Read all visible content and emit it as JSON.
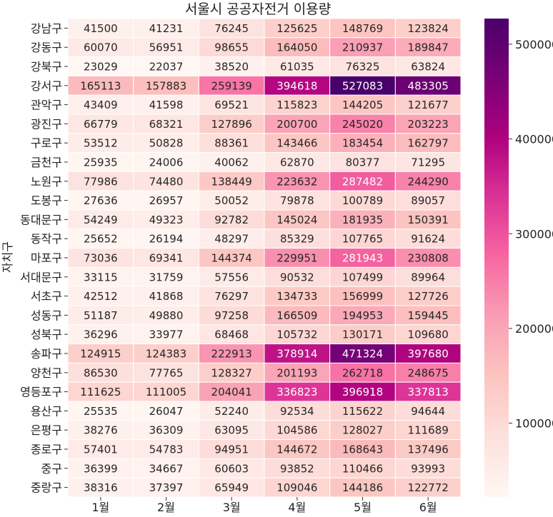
{
  "chart_data": {
    "type": "heatmap",
    "title": "서울시 공공자전거 이용량",
    "ylabel": "자치구",
    "xlabel": "",
    "x_categories": [
      "1월",
      "2월",
      "3월",
      "4월",
      "5월",
      "6월"
    ],
    "y_categories": [
      "강남구",
      "강동구",
      "강북구",
      "강서구",
      "관악구",
      "광진구",
      "구로구",
      "금천구",
      "노원구",
      "도봉구",
      "동대문구",
      "동작구",
      "마포구",
      "서대문구",
      "서초구",
      "성동구",
      "성북구",
      "송파구",
      "양천구",
      "영등포구",
      "용산구",
      "은평구",
      "종로구",
      "중구",
      "중랑구"
    ],
    "values": [
      [
        41500,
        41231,
        76245,
        125625,
        148769,
        123824
      ],
      [
        60070,
        56951,
        98655,
        164050,
        210937,
        189847
      ],
      [
        23029,
        22037,
        38520,
        61035,
        76325,
        63824
      ],
      [
        165113,
        157883,
        259139,
        394618,
        527083,
        483305
      ],
      [
        43409,
        41598,
        69521,
        115823,
        144205,
        121677
      ],
      [
        66779,
        68321,
        127896,
        200700,
        245020,
        203223
      ],
      [
        53512,
        50828,
        88361,
        143466,
        183454,
        162797
      ],
      [
        25935,
        24006,
        40062,
        62870,
        80377,
        71295
      ],
      [
        77986,
        74480,
        138449,
        223632,
        287482,
        244290
      ],
      [
        27636,
        26957,
        50052,
        79878,
        100789,
        89057
      ],
      [
        54249,
        49323,
        92782,
        145024,
        181935,
        150391
      ],
      [
        25652,
        26194,
        48297,
        85329,
        107765,
        91624
      ],
      [
        73036,
        69341,
        144374,
        229951,
        281943,
        230808
      ],
      [
        33115,
        31759,
        57556,
        90532,
        107499,
        89964
      ],
      [
        42512,
        41868,
        76297,
        134733,
        156999,
        127726
      ],
      [
        51187,
        49880,
        97258,
        166509,
        194953,
        159445
      ],
      [
        36296,
        33977,
        68468,
        105732,
        130171,
        109680
      ],
      [
        124915,
        124383,
        222913,
        378914,
        471324,
        397680
      ],
      [
        86530,
        77765,
        128327,
        201193,
        262718,
        248675
      ],
      [
        111625,
        111005,
        204041,
        336823,
        396918,
        337813
      ],
      [
        25535,
        26047,
        52240,
        92534,
        115622,
        94644
      ],
      [
        38276,
        36309,
        63095,
        104586,
        128027,
        111689
      ],
      [
        57401,
        54783,
        94951,
        144672,
        168643,
        137496
      ],
      [
        36399,
        34667,
        60603,
        93852,
        110466,
        93993
      ],
      [
        38316,
        37397,
        65949,
        109046,
        144186,
        122772
      ]
    ],
    "colorbar": {
      "min": 22037,
      "max": 527083,
      "ticks": [
        100000,
        200000,
        300000,
        400000,
        500000
      ],
      "tick_labels": [
        "100000",
        "200000",
        "300000",
        "400000",
        "500000"
      ]
    },
    "colormap": "RdPu",
    "cell_border_color": "#ffffff"
  }
}
